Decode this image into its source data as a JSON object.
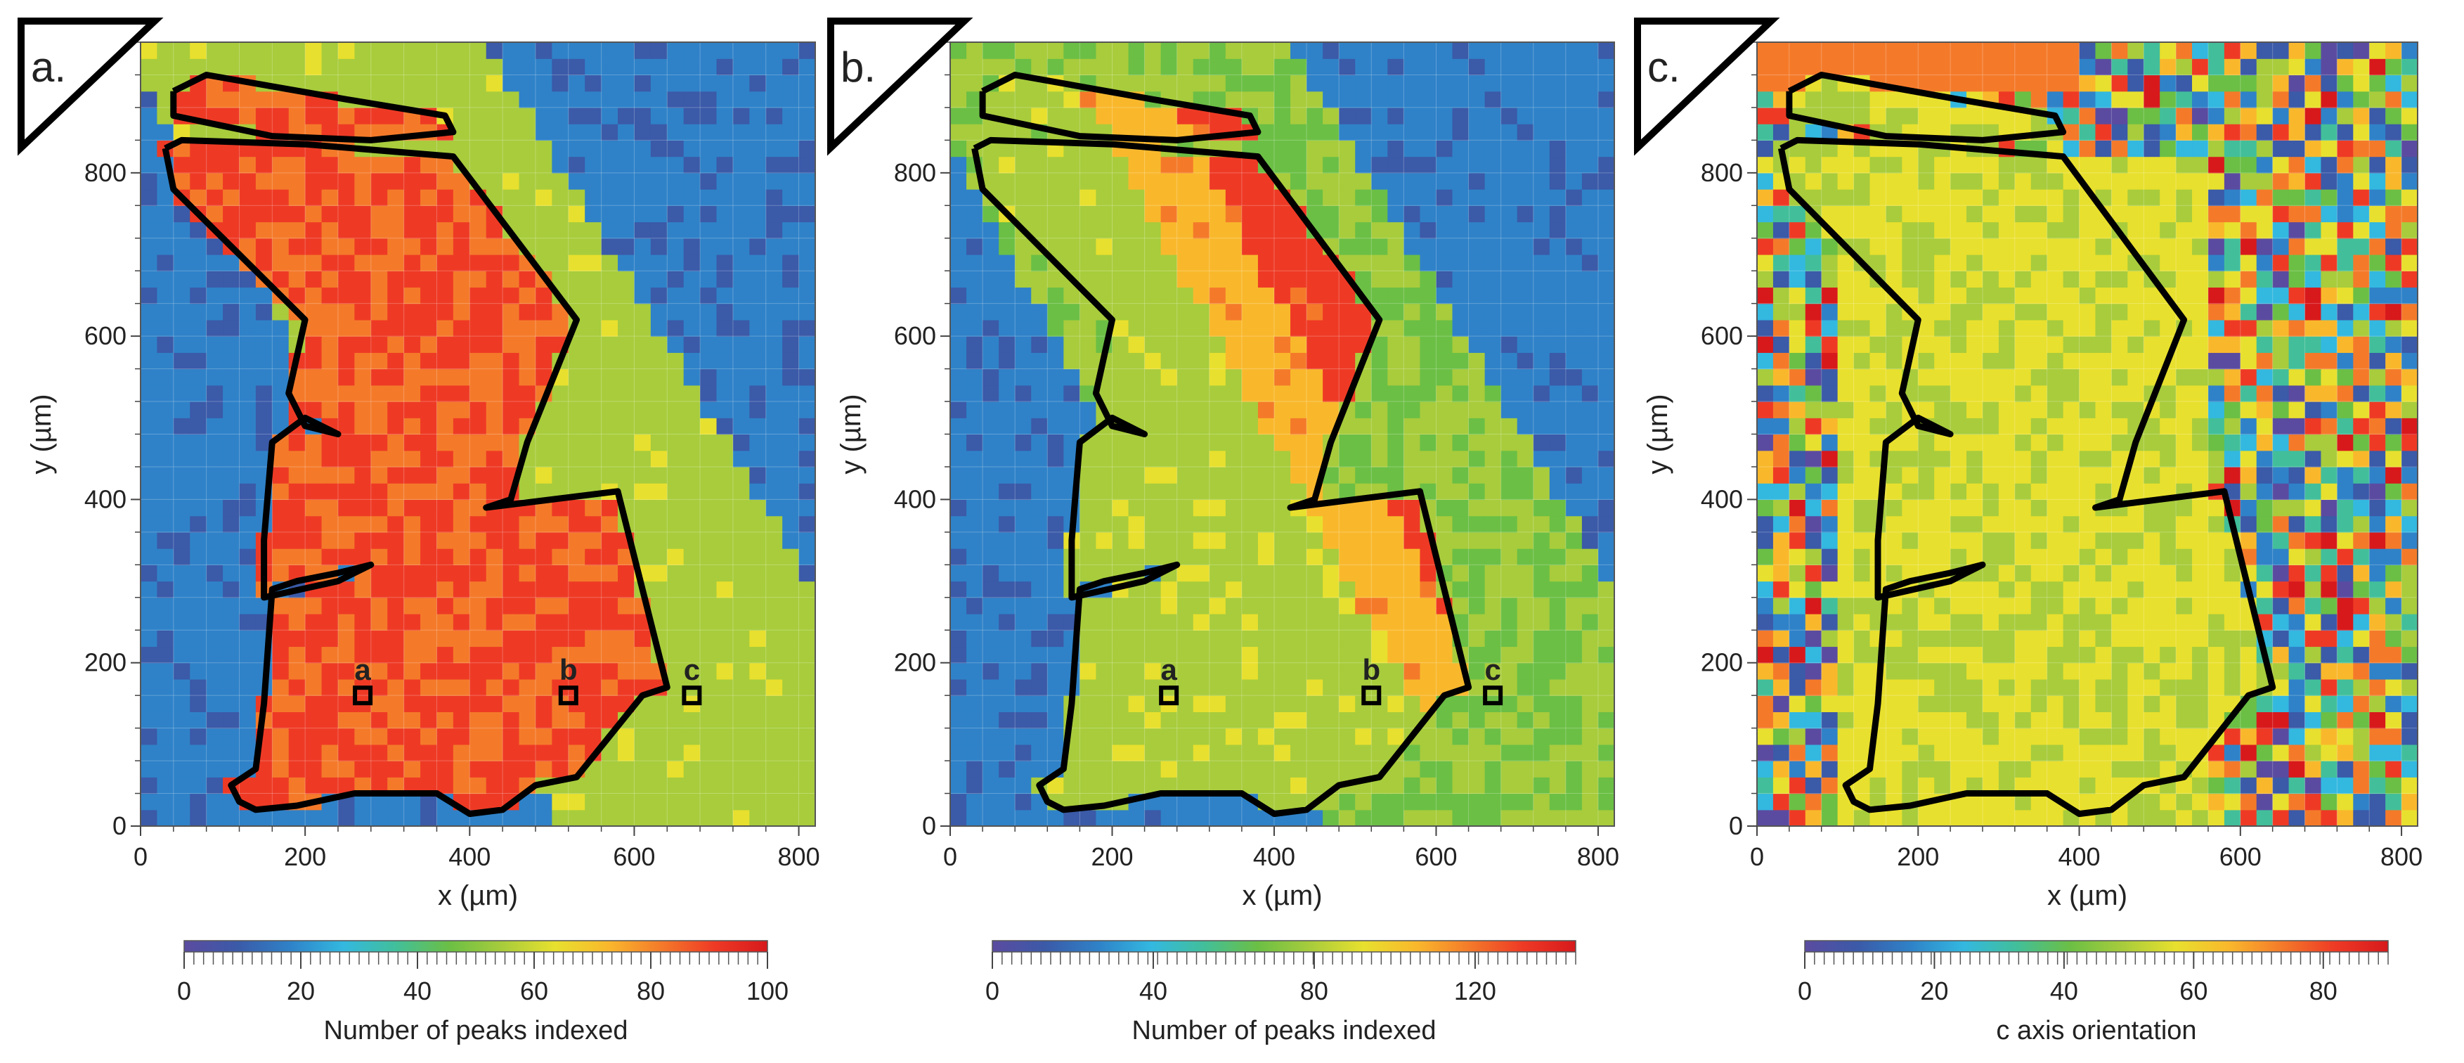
{
  "chart_data": [
    {
      "type": "heatmap",
      "panel_label": "a.",
      "xlabel": "x (µm)",
      "ylabel": "y (µm)",
      "xlim": [
        0,
        820
      ],
      "ylim": [
        0,
        960
      ],
      "x_ticks": [
        "0",
        "200",
        "400",
        "600",
        "800"
      ],
      "y_ticks": [
        "0",
        "200",
        "400",
        "600",
        "800"
      ],
      "colorbar": {
        "label": "Number of peaks indexed",
        "range": [
          0,
          100
        ],
        "ticks": [
          "0",
          "20",
          "40",
          "60",
          "80",
          "100"
        ]
      },
      "points": [
        {
          "label": "a",
          "x": 270,
          "y": 160
        },
        {
          "label": "b",
          "x": 520,
          "y": 160
        },
        {
          "label": "c",
          "x": 670,
          "y": 160
        }
      ]
    },
    {
      "type": "heatmap",
      "panel_label": "b.",
      "xlabel": "x (µm)",
      "ylabel": "y (µm)",
      "xlim": [
        0,
        820
      ],
      "ylim": [
        0,
        960
      ],
      "x_ticks": [
        "0",
        "200",
        "400",
        "600",
        "800"
      ],
      "y_ticks": [
        "0",
        "200",
        "400",
        "600",
        "800"
      ],
      "colorbar": {
        "label": "Number of peaks indexed",
        "range": [
          0,
          145
        ],
        "ticks": [
          "0",
          "40",
          "80",
          "120"
        ]
      },
      "points": [
        {
          "label": "a",
          "x": 270,
          "y": 160
        },
        {
          "label": "b",
          "x": 520,
          "y": 160
        },
        {
          "label": "c",
          "x": 670,
          "y": 160
        }
      ]
    },
    {
      "type": "heatmap",
      "panel_label": "c.",
      "xlabel": "x (µm)",
      "ylabel": "y (µm)",
      "xlim": [
        0,
        820
      ],
      "ylim": [
        0,
        960
      ],
      "x_ticks": [
        "0",
        "200",
        "400",
        "600",
        "800"
      ],
      "y_ticks": [
        "0",
        "200",
        "400",
        "600",
        "800"
      ],
      "colorbar": {
        "label": "c axis orientation",
        "range": [
          0,
          90
        ],
        "ticks": [
          "0",
          "20",
          "40",
          "60",
          "80"
        ]
      },
      "points": []
    }
  ],
  "colormap": [
    "#5b4ba0",
    "#3b5aa8",
    "#2f82c8",
    "#33b8e0",
    "#42bf9a",
    "#6bbf45",
    "#a8cc3c",
    "#e8e02e",
    "#f9b82c",
    "#f47a2a",
    "#ee3a25",
    "#d7191c"
  ],
  "grain_outline": [
    [
      40,
      900
    ],
    [
      80,
      920
    ],
    [
      250,
      890
    ],
    [
      370,
      870
    ],
    [
      380,
      850
    ],
    [
      280,
      840
    ],
    [
      160,
      845
    ],
    [
      40,
      870
    ],
    [
      40,
      900
    ],
    null,
    [
      30,
      830
    ],
    [
      50,
      840
    ],
    [
      200,
      835
    ],
    [
      380,
      820
    ],
    [
      530,
      620
    ],
    [
      470,
      470
    ],
    [
      450,
      400
    ],
    [
      420,
      390
    ],
    [
      580,
      410
    ],
    [
      640,
      170
    ],
    [
      610,
      160
    ],
    [
      530,
      60
    ],
    [
      480,
      50
    ],
    [
      440,
      20
    ],
    [
      400,
      15
    ],
    [
      360,
      40
    ],
    [
      260,
      40
    ],
    [
      190,
      25
    ],
    [
      140,
      20
    ],
    [
      120,
      30
    ],
    [
      110,
      50
    ],
    [
      140,
      70
    ],
    [
      150,
      150
    ],
    [
      160,
      290
    ],
    [
      190,
      300
    ],
    [
      240,
      310
    ],
    [
      280,
      320
    ],
    [
      240,
      300
    ],
    [
      150,
      280
    ],
    [
      150,
      350
    ],
    [
      160,
      470
    ],
    [
      200,
      500
    ],
    [
      240,
      480
    ],
    [
      200,
      490
    ],
    [
      180,
      530
    ],
    [
      200,
      620
    ],
    [
      120,
      700
    ],
    [
      40,
      780
    ],
    [
      30,
      830
    ]
  ]
}
